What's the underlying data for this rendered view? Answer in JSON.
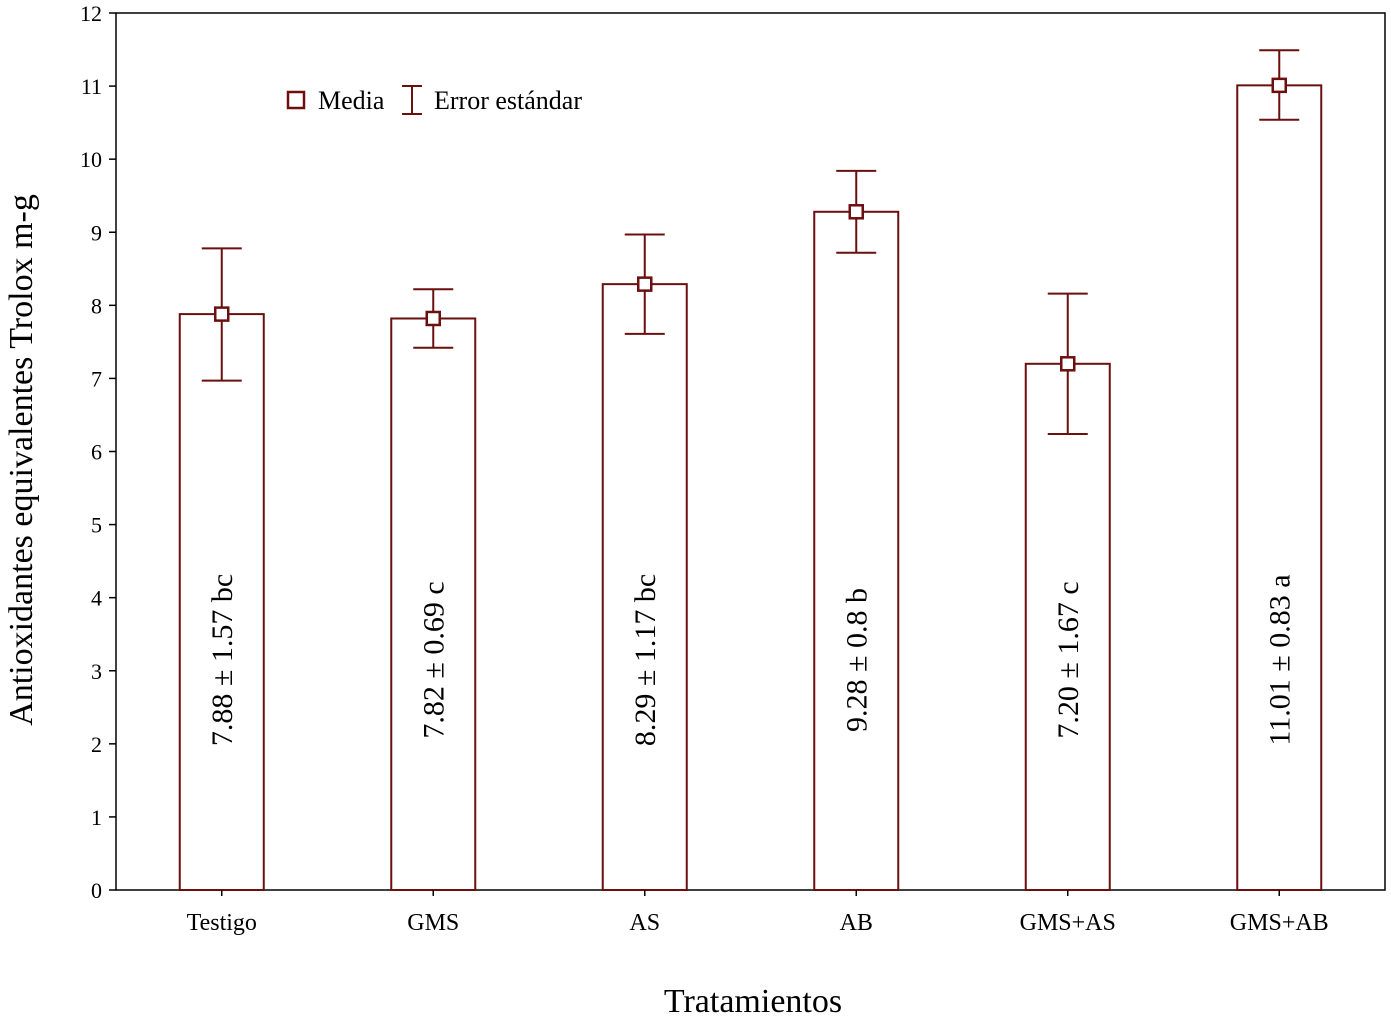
{
  "chart_data": {
    "type": "bar",
    "xlabel": "Tratamientos",
    "ylabel": "Antioxidantes equivalentes Trolox m-g",
    "ylim": [
      0,
      12
    ],
    "yticks": [
      0,
      1,
      2,
      3,
      4,
      5,
      6,
      7,
      8,
      9,
      10,
      11,
      12
    ],
    "categories": [
      "Testigo",
      "GMS",
      "AS",
      "AB",
      "GMS+AS",
      "GMS+AB"
    ],
    "values": [
      7.88,
      7.82,
      8.29,
      9.28,
      7.2,
      11.01
    ],
    "error_bars": [
      {
        "lower": 6.97,
        "upper": 8.78
      },
      {
        "lower": 7.42,
        "upper": 8.22
      },
      {
        "lower": 7.61,
        "upper": 8.97
      },
      {
        "lower": 8.72,
        "upper": 9.84
      },
      {
        "lower": 6.24,
        "upper": 8.16
      },
      {
        "lower": 10.54,
        "upper": 11.49
      }
    ],
    "bar_labels": [
      "7.88 ± 1.57   bc",
      "7.82 ± 0.69   c",
      "8.29 ± 1.17   bc",
      "9.28 ± 0.8   b",
      "7.20 ± 1.67   c",
      "11.01 ± 0.83   a"
    ],
    "legend": {
      "position": "top-left",
      "mean_label": "Media",
      "error_label": "Error estándar"
    },
    "grid": false,
    "color": "#6b0f0f"
  }
}
